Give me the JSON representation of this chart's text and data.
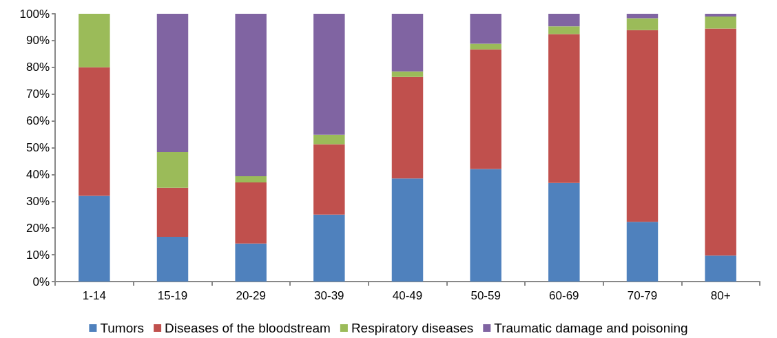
{
  "chart_data": {
    "type": "bar",
    "stacked": true,
    "categories": [
      "1-14",
      "15-19",
      "20-29",
      "30-39",
      "40-49",
      "50-59",
      "60-69",
      "70-79",
      "80+"
    ],
    "series": [
      {
        "name": "Tumors",
        "color": "#4f81bd",
        "values": [
          32,
          16.7,
          14.2,
          25,
          38.5,
          42,
          36.8,
          22.3,
          9.7
        ]
      },
      {
        "name": "Diseases of the bloodstream",
        "color": "#c0504d",
        "values": [
          48,
          18.3,
          22.8,
          26.3,
          37.9,
          44.7,
          55.6,
          71.6,
          84.8
        ]
      },
      {
        "name": "Respiratory diseases",
        "color": "#9bbb59",
        "values": [
          20,
          13.3,
          2.3,
          3.5,
          2.1,
          2.1,
          2.9,
          4.4,
          4.5
        ]
      },
      {
        "name": "Traumatic damage and poisoning",
        "color": "#8064a2",
        "values": [
          0,
          51.7,
          60.7,
          45.2,
          21.5,
          11.2,
          4.7,
          1.7,
          1
        ]
      }
    ],
    "ylim": [
      0,
      100
    ],
    "yticks": [
      {
        "value": 0,
        "label": "0%"
      },
      {
        "value": 10,
        "label": "10%"
      },
      {
        "value": 20,
        "label": "20%"
      },
      {
        "value": 30,
        "label": "30%"
      },
      {
        "value": 40,
        "label": "40%"
      },
      {
        "value": 50,
        "label": "50%"
      },
      {
        "value": 60,
        "label": "60%"
      },
      {
        "value": 70,
        "label": "70%"
      },
      {
        "value": 80,
        "label": "80%"
      },
      {
        "value": 90,
        "label": "90%"
      },
      {
        "value": 100,
        "label": "100%"
      }
    ],
    "grid": false,
    "legend": "bottom"
  }
}
